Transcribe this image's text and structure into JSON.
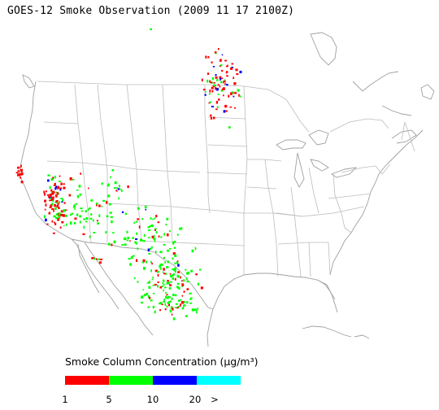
{
  "map": {
    "title": "GOES-12 Smoke Observation (2009 11 17  2100Z)",
    "region": "United States, northern Mexico, southern Canada",
    "land_color": "#ffffff",
    "border_color": "#bcbcbc",
    "coastline_color": "#a0a0a0"
  },
  "legend": {
    "title": "Smoke Column Concentration (μg/m³)",
    "categories": [
      {
        "range": "1-5",
        "color": "#ff0000"
      },
      {
        "range": "5-10",
        "color": "#00ff00"
      },
      {
        "range": "10-20",
        "color": "#0000ff"
      },
      {
        "range": "> 20",
        "color": "#00ffff"
      }
    ],
    "tick_labels": [
      "1",
      "5",
      "10",
      "20",
      ">"
    ]
  }
}
